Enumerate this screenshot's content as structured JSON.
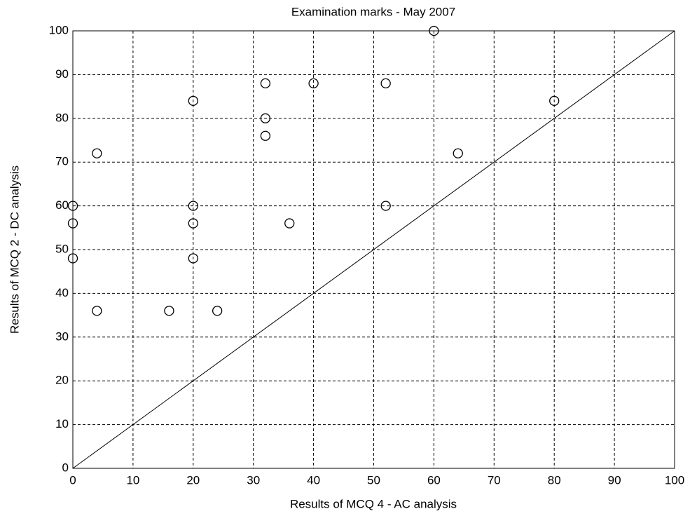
{
  "chart_data": {
    "type": "scatter",
    "title": "Examination marks - May 2007",
    "xlabel": "Results of MCQ 4 - AC analysis",
    "ylabel": "Results of MCQ 2 - DC analysis",
    "series": [
      {
        "color": "#000000",
        "x": [
          0,
          0,
          0,
          4,
          4,
          16,
          20,
          20,
          20,
          20,
          24,
          32,
          32,
          32,
          36,
          40,
          52,
          52,
          60,
          64,
          80
        ],
        "values": [
          60,
          56,
          48,
          72,
          36,
          36,
          84,
          60,
          56,
          48,
          36,
          88,
          80,
          76,
          56,
          88,
          88,
          60,
          100,
          72,
          84
        ]
      }
    ],
    "lines": [
      {
        "color": "#000000",
        "x": [
          0,
          100
        ],
        "values": [
          0,
          100
        ]
      }
    ],
    "xlim": [
      0,
      100
    ],
    "ylim": [
      0,
      100
    ],
    "xticks": [
      0,
      10,
      20,
      30,
      40,
      50,
      60,
      70,
      80,
      90,
      100
    ],
    "yticks": [
      0,
      10,
      20,
      30,
      40,
      50,
      60,
      70,
      80,
      90,
      100
    ],
    "grid": true
  }
}
